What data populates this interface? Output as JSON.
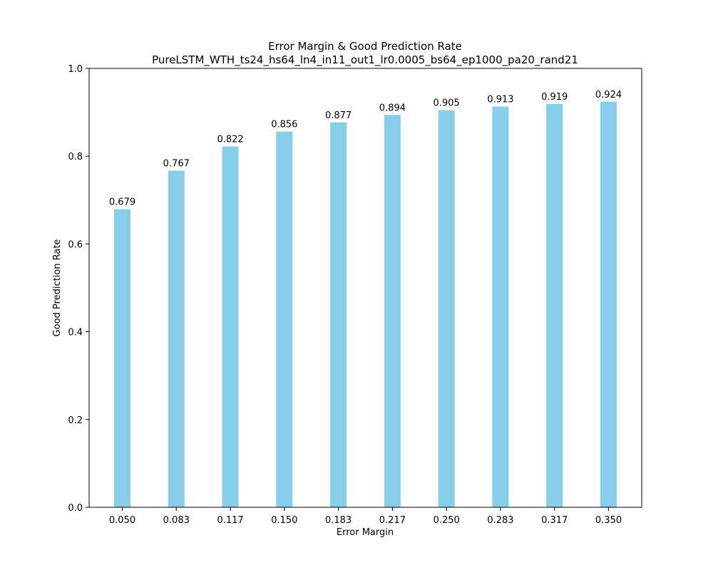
{
  "chart_data": {
    "type": "bar",
    "title": "Error Margin & Good Prediction Rate",
    "subtitle": "PureLSTM_WTH_ts24_hs64_ln4_in11_out1_lr0.0005_bs64_ep1000_pa20_rand21",
    "xlabel": "Error Margin",
    "ylabel": "Good Prediction Rate",
    "categories": [
      "0.050",
      "0.083",
      "0.117",
      "0.150",
      "0.183",
      "0.217",
      "0.250",
      "0.283",
      "0.317",
      "0.350"
    ],
    "values": [
      0.679,
      0.767,
      0.822,
      0.856,
      0.877,
      0.894,
      0.905,
      0.913,
      0.919,
      0.924
    ],
    "data_labels": [
      "0.679",
      "0.767",
      "0.822",
      "0.856",
      "0.877",
      "0.894",
      "0.905",
      "0.913",
      "0.919",
      "0.924"
    ],
    "ylim": [
      0,
      1.0
    ],
    "yticks": [
      "0.0",
      "0.2",
      "0.4",
      "0.6",
      "0.8",
      "1.0"
    ],
    "ytick_values": [
      0,
      0.2,
      0.4,
      0.6,
      0.8,
      1.0
    ],
    "bar_color": "#87ceeb",
    "grid": false,
    "legend": false
  }
}
